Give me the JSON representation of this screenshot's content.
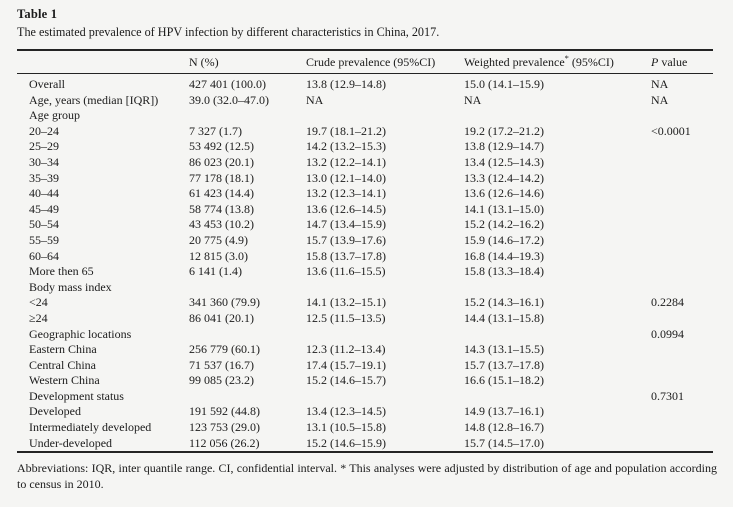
{
  "title": "Table 1",
  "caption": "The estimated prevalence of HPV infection by different characteristics in China, 2017.",
  "table": {
    "columns": {
      "label": "",
      "n": "N (%)",
      "crude": "Crude prevalence (95%CI)",
      "weighted_prefix": "Weighted prevalence",
      "weighted_sup": "*",
      "weighted_suffix": " (95%CI)",
      "p_italic": "P",
      "p_rest": " value"
    },
    "rows": [
      {
        "label": "Overall",
        "n": "427 401 (100.0)",
        "crude": "13.8 (12.9–14.8)",
        "weighted": "15.0 (14.1–15.9)",
        "p": "NA",
        "section": false
      },
      {
        "label": "Age, years (median [IQR])",
        "n": "39.0 (32.0–47.0)",
        "crude": "NA",
        "weighted": "NA",
        "p": "NA",
        "section": false
      },
      {
        "label": "Age group",
        "n": "",
        "crude": "",
        "weighted": "",
        "p": "",
        "section": true
      },
      {
        "label": "20–24",
        "n": "7 327 (1.7)",
        "crude": "19.7 (18.1–21.2)",
        "weighted": "19.2 (17.2–21.2)",
        "p": "<0.0001",
        "section": false
      },
      {
        "label": "25–29",
        "n": "53 492 (12.5)",
        "crude": "14.2 (13.2–15.3)",
        "weighted": "13.8 (12.9–14.7)",
        "p": "",
        "section": false
      },
      {
        "label": "30–34",
        "n": "86 023 (20.1)",
        "crude": "13.2 (12.2–14.1)",
        "weighted": "13.4 (12.5–14.3)",
        "p": "",
        "section": false
      },
      {
        "label": "35–39",
        "n": "77 178 (18.1)",
        "crude": "13.0 (12.1–14.0)",
        "weighted": "13.3 (12.4–14.2)",
        "p": "",
        "section": false
      },
      {
        "label": "40–44",
        "n": "61 423 (14.4)",
        "crude": "13.2 (12.3–14.1)",
        "weighted": "13.6 (12.6–14.6)",
        "p": "",
        "section": false
      },
      {
        "label": "45–49",
        "n": "58 774 (13.8)",
        "crude": "13.6 (12.6–14.5)",
        "weighted": "14.1 (13.1–15.0)",
        "p": "",
        "section": false
      },
      {
        "label": "50–54",
        "n": "43 453 (10.2)",
        "crude": "14.7 (13.4–15.9)",
        "weighted": "15.2 (14.2–16.2)",
        "p": "",
        "section": false
      },
      {
        "label": "55–59",
        "n": "20 775 (4.9)",
        "crude": "15.7 (13.9–17.6)",
        "weighted": "15.9 (14.6–17.2)",
        "p": "",
        "section": false
      },
      {
        "label": "60–64",
        "n": "12 815 (3.0)",
        "crude": "15.8 (13.7–17.8)",
        "weighted": "16.8 (14.4–19.3)",
        "p": "",
        "section": false
      },
      {
        "label": "More then 65",
        "n": "6 141 (1.4)",
        "crude": "13.6 (11.6–15.5)",
        "weighted": "15.8 (13.3–18.4)",
        "p": "",
        "section": false
      },
      {
        "label": "Body mass index",
        "n": "",
        "crude": "",
        "weighted": "",
        "p": "",
        "section": true
      },
      {
        "label": "<24",
        "n": "341 360 (79.9)",
        "crude": "14.1 (13.2–15.1)",
        "weighted": "15.2 (14.3–16.1)",
        "p": "0.2284",
        "section": false
      },
      {
        "label": "≥24",
        "n": "86 041 (20.1)",
        "crude": "12.5 (11.5–13.5)",
        "weighted": "14.4 (13.1–15.8)",
        "p": "",
        "section": false
      },
      {
        "label": "Geographic locations",
        "n": "",
        "crude": "",
        "weighted": "",
        "p": "0.0994",
        "section": true
      },
      {
        "label": "Eastern China",
        "n": "256 779 (60.1)",
        "crude": "12.3 (11.2–13.4)",
        "weighted": "14.3 (13.1–15.5)",
        "p": "",
        "section": false
      },
      {
        "label": "Central China",
        "n": "71 537 (16.7)",
        "crude": "17.4 (15.7–19.1)",
        "weighted": "15.7 (13.7–17.8)",
        "p": "",
        "section": false
      },
      {
        "label": "Western China",
        "n": "99 085 (23.2)",
        "crude": "15.2 (14.6–15.7)",
        "weighted": "16.6 (15.1–18.2)",
        "p": "",
        "section": false
      },
      {
        "label": "Development status",
        "n": "",
        "crude": "",
        "weighted": "",
        "p": "0.7301",
        "section": true
      },
      {
        "label": "Developed",
        "n": "191 592 (44.8)",
        "crude": "13.4 (12.3–14.5)",
        "weighted": "14.9 (13.7–16.1)",
        "p": "",
        "section": false
      },
      {
        "label": "Intermediately developed",
        "n": "123 753 (29.0)",
        "crude": "13.1 (10.5–15.8)",
        "weighted": "14.8 (12.8–16.7)",
        "p": "",
        "section": false
      },
      {
        "label": "Under-developed",
        "n": "112 056 (26.2)",
        "crude": "15.2 (14.6–15.9)",
        "weighted": "15.7 (14.5–17.0)",
        "p": "",
        "section": false
      }
    ]
  },
  "footnote": "Abbreviations: IQR, inter quantile range. CI, confidential interval. * This analyses were adjusted by distribution of age and population according to census in 2010.",
  "colors": {
    "background": "#f5f5f3",
    "text": "#1b1b1b",
    "rule": "#242424"
  }
}
